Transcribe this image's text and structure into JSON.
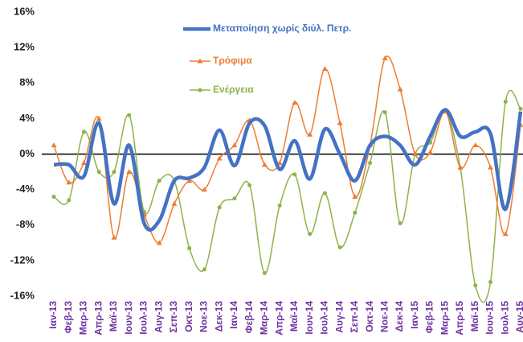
{
  "chart_data": {
    "type": "line",
    "categories": [
      "Ιαν-13",
      "Φεβ-13",
      "Μαρ-13",
      "Απρ-13",
      "Μαϊ-13",
      "Ιουν-13",
      "Ιουλ-13",
      "Αυγ-13",
      "Σεπ-13",
      "Οκτ-13",
      "Νοε-13",
      "Δεκ-13",
      "Ιαν-14",
      "Φεβ-14",
      "Μαρ-14",
      "Απρ-14",
      "Μαϊ-14",
      "Ιουν-14",
      "Ιουλ-14",
      "Αυγ-14",
      "Σεπ-14",
      "Οκτ-14",
      "Νοε-14",
      "Δεκ-14",
      "Ιαν-15",
      "Φεβ-15",
      "Μαρ-15",
      "Απρ-15",
      "Μαϊ-15",
      "Ιουν-15",
      "Ιουλ-15",
      "Αυγ-15"
    ],
    "series": [
      {
        "name": "Μεταποίηση χωρίς διύλ. Πετρ.",
        "color": "#4472c4",
        "marker": "none",
        "values": [
          -1.2,
          -1.2,
          -2.5,
          3.5,
          -5.6,
          1.0,
          -7.8,
          -7.5,
          -3.0,
          -2.7,
          -1.5,
          2.7,
          -1.3,
          3.5,
          3.2,
          -1.7,
          1.5,
          -2.8,
          2.8,
          0.0,
          -3.0,
          1.0,
          2.0,
          1.0,
          -1.2,
          2.0,
          5.0,
          2.0,
          2.5,
          2.3,
          -6.2,
          4.8
        ]
      },
      {
        "name": "Τρόφιμα",
        "color": "#ed7d31",
        "marker": "triangle",
        "values": [
          1.0,
          -3.2,
          -1.0,
          4.0,
          -9.4,
          -2.0,
          -6.8,
          -10.0,
          -5.6,
          -3.0,
          -4.0,
          -0.5,
          1.0,
          3.8,
          -1.2,
          -1.0,
          5.8,
          2.2,
          9.6,
          3.5,
          -4.8,
          1.0,
          10.8,
          7.3,
          0.0,
          0.2,
          4.8,
          -1.5,
          1.0,
          -1.5,
          -9.0,
          3.3
        ]
      },
      {
        "name": "Ενέργεια",
        "color": "#8db348",
        "marker": "circle",
        "values": [
          -4.8,
          -5.2,
          2.5,
          -2.0,
          -2.0,
          4.4,
          -6.5,
          -3.0,
          -3.0,
          -10.6,
          -13.0,
          -6.0,
          -5.0,
          -3.5,
          -13.4,
          -5.8,
          -2.3,
          -9.0,
          -4.4,
          -10.5,
          -6.6,
          -1.0,
          4.7,
          -7.8,
          0.0,
          1.3,
          4.8,
          -1.6,
          -14.8,
          -14.4,
          5.9,
          5.1
        ]
      }
    ],
    "ylim": [
      -16,
      16
    ],
    "yticks": [
      {
        "value": -16,
        "label": "-16%"
      },
      {
        "value": -12,
        "label": "-12%"
      },
      {
        "value": -8,
        "label": "-8%"
      },
      {
        "value": -4,
        "label": "-4%"
      },
      {
        "value": 0,
        "label": "0%"
      },
      {
        "value": 4,
        "label": "4%"
      },
      {
        "value": 8,
        "label": "8%"
      },
      {
        "value": 12,
        "label": "12%"
      },
      {
        "value": 16,
        "label": "16%"
      }
    ],
    "grid": false
  }
}
